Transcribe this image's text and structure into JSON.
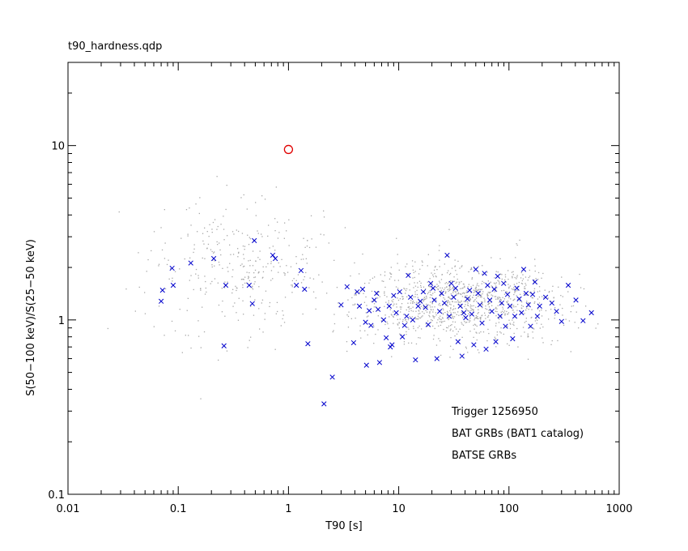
{
  "chart_data": {
    "type": "scatter",
    "title": "t90_hardness.qdp",
    "xlabel": "T90 [s]",
    "ylabel": "S(50−100 keV)/S(25−50 keV)",
    "x_scale": "log",
    "y_scale": "log",
    "xlim": [
      0.01,
      1000
    ],
    "ylim": [
      0.1,
      30
    ],
    "x_ticks": [
      "0.01",
      "0.1",
      "1",
      "10",
      "100",
      "1000"
    ],
    "y_ticks": [
      "0.1",
      "1",
      "10"
    ],
    "legend_position": "bottom-right",
    "colors": {
      "trigger": "#e00000",
      "bat": "#0000cc",
      "batse": "#a8a8a8",
      "axis": "#000000"
    },
    "series": [
      {
        "name": "Trigger 1256950",
        "marker": "circle",
        "points": [
          [
            1.0,
            9.5
          ]
        ]
      },
      {
        "name": "BAT GRBs (BAT1 catalog)",
        "marker": "x",
        "points": [
          [
            0.07,
            1.28
          ],
          [
            0.072,
            1.48
          ],
          [
            0.088,
            1.98
          ],
          [
            0.09,
            1.58
          ],
          [
            0.13,
            2.12
          ],
          [
            0.21,
            2.25
          ],
          [
            0.26,
            0.71
          ],
          [
            0.27,
            1.58
          ],
          [
            0.44,
            1.58
          ],
          [
            0.47,
            1.24
          ],
          [
            0.49,
            2.85
          ],
          [
            0.72,
            2.35
          ],
          [
            0.76,
            2.25
          ],
          [
            1.18,
            1.58
          ],
          [
            1.3,
            1.92
          ],
          [
            1.4,
            1.5
          ],
          [
            1.5,
            0.73
          ],
          [
            2.1,
            0.33
          ],
          [
            2.5,
            0.47
          ],
          [
            3.0,
            1.22
          ],
          [
            3.4,
            1.55
          ],
          [
            3.9,
            0.74
          ],
          [
            4.2,
            1.45
          ],
          [
            4.4,
            1.2
          ],
          [
            4.7,
            1.5
          ],
          [
            5.0,
            0.97
          ],
          [
            5.1,
            0.55
          ],
          [
            5.4,
            1.13
          ],
          [
            5.6,
            0.93
          ],
          [
            6.0,
            1.3
          ],
          [
            6.3,
            1.42
          ],
          [
            6.5,
            1.15
          ],
          [
            6.7,
            0.57
          ],
          [
            7.3,
            1.0
          ],
          [
            7.7,
            0.79
          ],
          [
            8.2,
            1.2
          ],
          [
            8.4,
            0.7
          ],
          [
            8.7,
            0.72
          ],
          [
            9.0,
            1.38
          ],
          [
            9.5,
            1.1
          ],
          [
            10.2,
            1.45
          ],
          [
            10.8,
            0.8
          ],
          [
            11.3,
            0.93
          ],
          [
            11.8,
            1.05
          ],
          [
            12.2,
            1.8
          ],
          [
            12.8,
            1.35
          ],
          [
            13.4,
            1.0
          ],
          [
            14.2,
            0.59
          ],
          [
            15.0,
            1.2
          ],
          [
            15.7,
            1.28
          ],
          [
            16.7,
            1.45
          ],
          [
            17.5,
            1.18
          ],
          [
            18.5,
            0.94
          ],
          [
            19.5,
            1.62
          ],
          [
            20.5,
            1.52
          ],
          [
            21.0,
            1.3
          ],
          [
            22.2,
            0.6
          ],
          [
            23.5,
            1.12
          ],
          [
            24.5,
            1.42
          ],
          [
            26.0,
            1.25
          ],
          [
            27.5,
            2.35
          ],
          [
            28.7,
            1.05
          ],
          [
            30.0,
            1.62
          ],
          [
            31.5,
            1.35
          ],
          [
            32.8,
            1.52
          ],
          [
            34.5,
            0.75
          ],
          [
            36.2,
            1.2
          ],
          [
            37.5,
            0.62
          ],
          [
            39.0,
            1.1
          ],
          [
            40.5,
            1.03
          ],
          [
            42.0,
            1.32
          ],
          [
            44.0,
            1.48
          ],
          [
            46.0,
            1.08
          ],
          [
            48.0,
            0.72
          ],
          [
            50.0,
            1.95
          ],
          [
            52.5,
            1.42
          ],
          [
            54.5,
            1.22
          ],
          [
            57.0,
            0.96
          ],
          [
            60.0,
            1.85
          ],
          [
            62.0,
            0.68
          ],
          [
            64.0,
            1.58
          ],
          [
            67.0,
            1.3
          ],
          [
            70.0,
            1.12
          ],
          [
            73.5,
            1.5
          ],
          [
            76.0,
            0.75
          ],
          [
            79.0,
            1.78
          ],
          [
            83.0,
            1.05
          ],
          [
            86.0,
            1.25
          ],
          [
            89.5,
            1.62
          ],
          [
            93.0,
            0.92
          ],
          [
            97.0,
            1.4
          ],
          [
            102.0,
            1.2
          ],
          [
            108.0,
            0.78
          ],
          [
            113.0,
            1.05
          ],
          [
            118.0,
            1.52
          ],
          [
            124.0,
            1.32
          ],
          [
            130.0,
            1.1
          ],
          [
            136.0,
            1.95
          ],
          [
            143.0,
            1.42
          ],
          [
            150.0,
            1.22
          ],
          [
            157.0,
            0.92
          ],
          [
            164.0,
            1.4
          ],
          [
            172.0,
            1.65
          ],
          [
            181.0,
            1.05
          ],
          [
            190.0,
            1.2
          ],
          [
            215.0,
            1.35
          ],
          [
            245.0,
            1.25
          ],
          [
            270.0,
            1.12
          ],
          [
            300.0,
            0.98
          ],
          [
            345.0,
            1.58
          ],
          [
            405.0,
            1.3
          ],
          [
            470.0,
            0.99
          ],
          [
            560.0,
            1.1
          ]
        ]
      },
      {
        "name": "BATSE GRBs",
        "marker": "dot",
        "count": 1400
      }
    ]
  }
}
